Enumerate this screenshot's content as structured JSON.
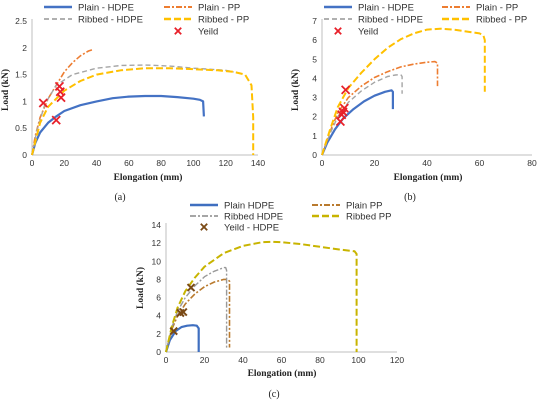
{
  "figure": {
    "captions": [
      "(a)",
      "(b)",
      "(c)"
    ]
  },
  "colors": {
    "plain_hdpe": "#4472c4",
    "plain_pp": "#ed7d31",
    "ribbed_hdpe": "#a5a5a5",
    "ribbed_pp": "#ffc000",
    "yield_red": "#e8202a",
    "c_plain_hdpe": "#3f6fc0",
    "c_plain_pp": "#b97a2e",
    "c_ribbed_hdpe": "#999999",
    "c_ribbed_pp": "#c8b400",
    "c_yield": "#7a4a16"
  },
  "chart_data": [
    {
      "type": "line",
      "caption": "(a)",
      "xlabel": "Elongation (mm)",
      "ylabel": "Load (kN)",
      "xlim": [
        0,
        140
      ],
      "ylim": [
        0,
        2.5
      ],
      "xticks": [
        0,
        20,
        40,
        60,
        80,
        100,
        120,
        140
      ],
      "yticks": [
        0,
        0.5,
        1,
        1.5,
        2,
        2.5
      ],
      "legend": "top",
      "series": [
        {
          "name": "Plain - HDPE",
          "color": "plain_hdpe",
          "dash": "",
          "width": 2.2,
          "x": [
            0,
            2,
            5,
            10,
            15,
            20,
            30,
            40,
            50,
            60,
            70,
            80,
            90,
            100,
            104,
            106,
            106.5
          ],
          "y": [
            0,
            0.22,
            0.42,
            0.6,
            0.72,
            0.82,
            0.93,
            1.0,
            1.06,
            1.09,
            1.1,
            1.1,
            1.08,
            1.05,
            1.03,
            1.0,
            0.72
          ]
        },
        {
          "name": "Plain - PP",
          "color": "plain_pp",
          "dash": "6,2,2,2",
          "width": 1.6,
          "x": [
            0,
            2,
            5,
            10,
            15,
            20,
            25,
            30,
            35,
            38
          ],
          "y": [
            0,
            0.35,
            0.7,
            1.05,
            1.3,
            1.55,
            1.72,
            1.85,
            1.94,
            1.97
          ]
        },
        {
          "name": "Ribbed - HDPE",
          "color": "ribbed_hdpe",
          "dash": "5,3",
          "width": 1.4,
          "x": [
            0,
            3,
            8,
            15,
            25,
            40,
            55,
            70,
            85,
            100,
            110,
            120,
            125
          ],
          "y": [
            0,
            0.45,
            0.95,
            1.3,
            1.5,
            1.62,
            1.67,
            1.68,
            1.66,
            1.62,
            1.6,
            1.58,
            1.55
          ]
        },
        {
          "name": "Ribbed - PP",
          "color": "ribbed_pp",
          "dash": "7,3",
          "width": 2,
          "x": [
            0,
            5,
            10,
            20,
            30,
            40,
            55,
            70,
            85,
            100,
            115,
            125,
            132,
            136,
            137,
            137
          ],
          "y": [
            0,
            0.6,
            0.9,
            1.2,
            1.38,
            1.5,
            1.58,
            1.62,
            1.62,
            1.6,
            1.58,
            1.55,
            1.5,
            1.3,
            0.7,
            0
          ]
        }
      ],
      "yield": {
        "name": "Yeild",
        "x": [
          7,
          15,
          17,
          17.5,
          18
        ],
        "y": [
          0.97,
          0.65,
          1.28,
          1.18,
          1.07
        ]
      }
    },
    {
      "type": "line",
      "caption": "(b)",
      "xlabel": "Elongation (mm)",
      "ylabel": "Load (kN)",
      "xlim": [
        0,
        80
      ],
      "ylim": [
        0,
        7
      ],
      "xticks": [
        0,
        20,
        40,
        60,
        80
      ],
      "yticks": [
        0,
        1,
        2,
        3,
        4,
        5,
        6,
        7
      ],
      "legend": "top",
      "series": [
        {
          "name": "Plain - HDPE",
          "color": "plain_hdpe",
          "dash": "",
          "width": 2.2,
          "x": [
            0,
            2,
            5,
            8,
            12,
            16,
            20,
            24,
            26.5,
            27,
            27
          ],
          "y": [
            0,
            0.65,
            1.35,
            1.9,
            2.4,
            2.8,
            3.1,
            3.3,
            3.38,
            3.3,
            2.4
          ]
        },
        {
          "name": "Plain - PP",
          "color": "plain_pp",
          "dash": "6,2,2,2",
          "width": 1.6,
          "x": [
            0,
            3,
            6,
            10,
            15,
            20,
            25,
            30,
            35,
            40,
            43,
            44,
            44
          ],
          "y": [
            0,
            1.2,
            2.2,
            3.0,
            3.6,
            4.05,
            4.35,
            4.6,
            4.75,
            4.85,
            4.88,
            4.8,
            3.6
          ]
        },
        {
          "name": "Ribbed - HDPE",
          "color": "ribbed_hdpe",
          "dash": "5,3",
          "width": 1.4,
          "x": [
            0,
            3,
            6,
            10,
            15,
            20,
            25,
            28,
            30,
            30.5,
            30.5
          ],
          "y": [
            0,
            1.1,
            2.0,
            2.75,
            3.35,
            3.8,
            4.1,
            4.18,
            4.2,
            4.1,
            3.2
          ]
        },
        {
          "name": "Ribbed - PP",
          "color": "ribbed_pp",
          "dash": "7,3",
          "width": 2,
          "x": [
            0,
            3,
            6,
            10,
            15,
            20,
            25,
            30,
            35,
            40,
            45,
            50,
            55,
            60,
            61.5,
            62,
            62
          ],
          "y": [
            0,
            1.3,
            2.5,
            3.5,
            4.3,
            5.0,
            5.6,
            6.05,
            6.35,
            6.55,
            6.6,
            6.55,
            6.45,
            6.35,
            6.25,
            6.0,
            3.3
          ]
        }
      ],
      "yield": {
        "name": "Yeild",
        "x": [
          7,
          7.5,
          8,
          8.5,
          9
        ],
        "y": [
          1.75,
          2.1,
          2.25,
          2.45,
          3.4
        ]
      }
    },
    {
      "type": "line",
      "caption": "(c)",
      "xlabel": "Elongation (mm)",
      "ylabel": "Load (kN)",
      "xlim": [
        0,
        120
      ],
      "ylim": [
        0,
        14
      ],
      "xticks": [
        0,
        20,
        40,
        60,
        80,
        100,
        120
      ],
      "yticks": [
        0,
        2,
        4,
        6,
        8,
        10,
        12,
        14
      ],
      "legend": "top",
      "series": [
        {
          "name": "Plain HDPE",
          "color": "c_plain_hdpe",
          "dash": "",
          "width": 2.2,
          "x": [
            0,
            2,
            5,
            8,
            11,
            14,
            16,
            17,
            17
          ],
          "y": [
            0,
            1.3,
            2.3,
            2.75,
            2.9,
            2.95,
            2.9,
            2.6,
            0
          ]
        },
        {
          "name": "Plain PP",
          "color": "c_plain_pp",
          "dash": "6,2,2,2",
          "width": 1.6,
          "x": [
            0,
            3,
            6,
            10,
            15,
            20,
            25,
            30,
            32,
            33,
            33
          ],
          "y": [
            0,
            2.5,
            4.0,
            5.3,
            6.4,
            7.2,
            7.7,
            8.0,
            8.0,
            7.8,
            0.5
          ]
        },
        {
          "name": "Ribbed HDPE",
          "color": "c_ribbed_hdpe",
          "dash": "6,2,2,2",
          "width": 1.4,
          "x": [
            0,
            3,
            6,
            10,
            15,
            20,
            25,
            30,
            31,
            31.5,
            31.5
          ],
          "y": [
            0,
            2.7,
            4.5,
            6.0,
            7.3,
            8.3,
            8.9,
            9.3,
            9.3,
            9.0,
            0.3
          ]
        },
        {
          "name": "Ribbed PP",
          "color": "c_ribbed_pp",
          "dash": "7,3",
          "width": 2,
          "x": [
            0,
            3,
            6,
            10,
            15,
            20,
            30,
            40,
            50,
            55,
            60,
            70,
            80,
            90,
            98,
            99,
            99
          ],
          "y": [
            0,
            2.8,
            4.9,
            6.7,
            8.2,
            9.4,
            10.9,
            11.7,
            12.1,
            12.15,
            12.1,
            11.9,
            11.6,
            11.3,
            11.1,
            10.8,
            0
          ]
        }
      ],
      "yield": {
        "name": "Yeild - HDPE",
        "x": [
          4,
          7.5,
          9,
          13
        ],
        "y": [
          2.3,
          4.3,
          4.4,
          7.1
        ]
      }
    }
  ]
}
